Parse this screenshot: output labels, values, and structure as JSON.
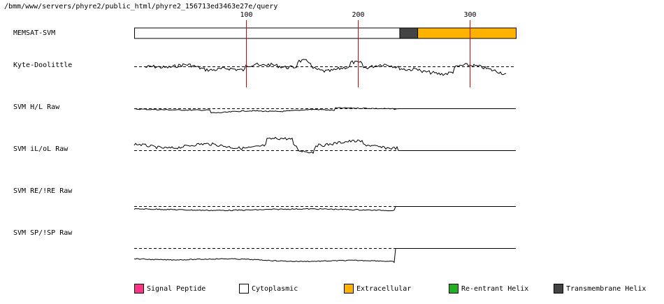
{
  "file_path": "/bmm/www/servers/phyre2/public_html/phyre2_156713ed3463e27e/query",
  "axis": {
    "sequence_length": 341,
    "ticks": [
      100,
      200,
      300
    ]
  },
  "tracks": [
    {
      "label": "MEMSAT-SVM"
    },
    {
      "label": "Kyte-Doolittle"
    },
    {
      "label": "SVM H/L Raw"
    },
    {
      "label": "SVM iL/oL Raw"
    },
    {
      "label": "SVM RE/!RE Raw"
    },
    {
      "label": "SVM SP/!SP Raw"
    }
  ],
  "memsat_segments": [
    {
      "type": "Cytoplasmic",
      "start": 1,
      "end": 237
    },
    {
      "type": "Transmembrane Helix",
      "start": 238,
      "end": 253
    },
    {
      "type": "Extracellular",
      "start": 254,
      "end": 341
    }
  ],
  "legend": [
    {
      "label": "Signal Peptide",
      "color": "#ff3388"
    },
    {
      "label": "Cytoplasmic",
      "color": "#ffffff"
    },
    {
      "label": "Extracellular",
      "color": "#ffb300"
    },
    {
      "label": "Re-entrant Helix",
      "color": "#22b022"
    },
    {
      "label": "Transmembrane Helix",
      "color": "#444444"
    }
  ],
  "colors": {
    "marker_line": "#dd0000",
    "plot_line": "#000000",
    "dashed_baseline": "#000000"
  }
}
